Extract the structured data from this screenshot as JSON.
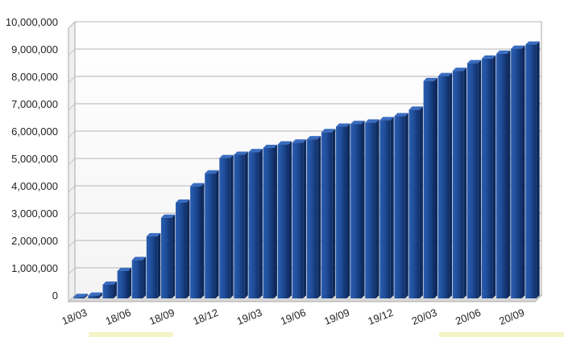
{
  "chart_data": {
    "type": "bar",
    "title": "",
    "xlabel": "",
    "ylabel": "",
    "ylim": [
      0,
      10000000
    ],
    "yticks": [
      0,
      1000000,
      2000000,
      3000000,
      4000000,
      5000000,
      6000000,
      7000000,
      8000000,
      9000000,
      10000000
    ],
    "ytick_labels": [
      "0",
      "1,000,000",
      "2,000,000",
      "3,000,000",
      "4,000,000",
      "5,000,000",
      "6,000,000",
      "7,000,000",
      "8,000,000",
      "9,000,000",
      "10,000,000"
    ],
    "x_tick_labels": [
      "18/03",
      "18/06",
      "18/09",
      "18/12",
      "19/03",
      "19/06",
      "19/09",
      "19/12",
      "20/03",
      "20/06",
      "20/09"
    ],
    "x_tick_every": 3,
    "grid": true,
    "legend": "none",
    "bar_color": "#1f4e9a",
    "values": [
      50000,
      100000,
      500000,
      1000000,
      1400000,
      2270000,
      2950000,
      3500000,
      4100000,
      4570000,
      5130000,
      5250000,
      5350000,
      5500000,
      5630000,
      5700000,
      5820000,
      6080000,
      6280000,
      6380000,
      6430000,
      6520000,
      6660000,
      6900000,
      7950000,
      8130000,
      8320000,
      8600000,
      8770000,
      8950000,
      9130000,
      9280000
    ]
  }
}
